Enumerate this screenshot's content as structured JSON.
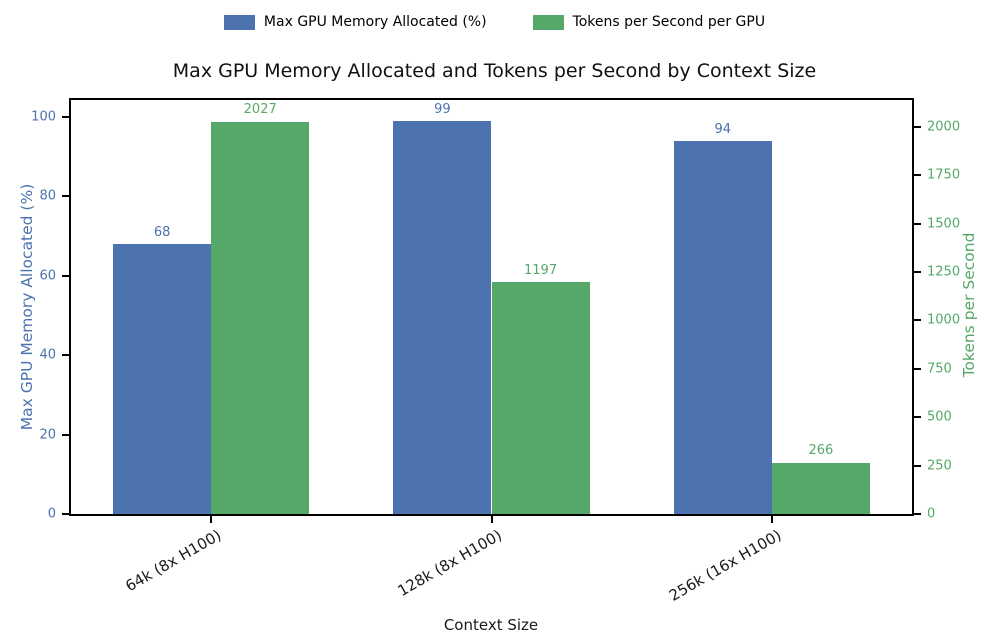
{
  "chart_data": {
    "type": "bar",
    "title": "Max GPU Memory Allocated and Tokens per Second by Context Size",
    "xlabel": "Context Size",
    "categories": [
      "64k (8x H100)",
      "128k (8x H100)",
      "256k (16x H100)"
    ],
    "series": [
      {
        "name": "Max GPU Memory Allocated (%)",
        "axis": "left",
        "color": "#4C72B0",
        "values": [
          68,
          99,
          94
        ]
      },
      {
        "name": "Tokens per Second per GPU",
        "axis": "right",
        "color": "#55A868",
        "values": [
          2027,
          1197,
          266
        ]
      }
    ],
    "axes": {
      "left": {
        "label": "Max GPU Memory Allocated (%)",
        "color": "#4C72B0",
        "ticks": [
          0,
          20,
          40,
          60,
          80,
          100
        ],
        "range": [
          0,
          104.3
        ]
      },
      "right": {
        "label": "Tokens per Second",
        "color": "#55A868",
        "ticks": [
          0,
          250,
          500,
          750,
          1000,
          1250,
          1500,
          1750,
          2000
        ],
        "range": [
          0,
          2138
        ]
      }
    },
    "legend": {
      "position": "top-center",
      "entries": [
        "Max GPU Memory Allocated (%)",
        "Tokens per Second per GPU"
      ]
    },
    "grid": false,
    "bar_value_labels": true,
    "xlim": [
      -0.5,
      2.5
    ],
    "bar_width_data_units": 0.35
  }
}
